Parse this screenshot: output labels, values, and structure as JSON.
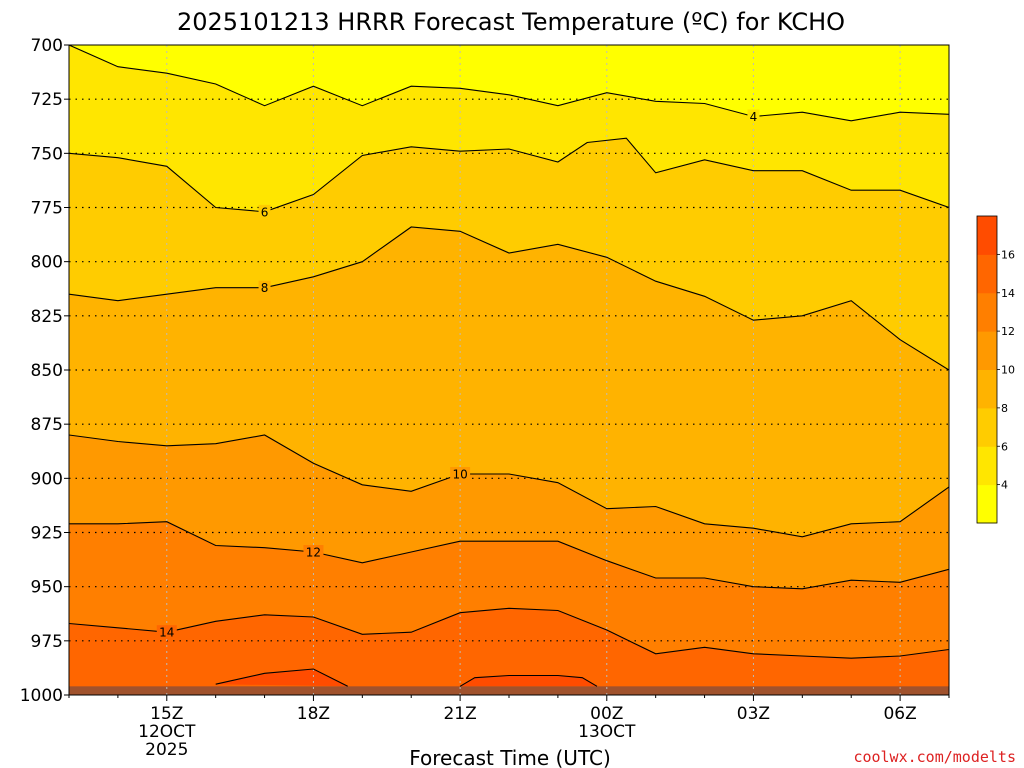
{
  "chart_data": {
    "type": "heatmap",
    "subtype": "time-pressure contour cross-section",
    "title": "2025101213 HRRR Forecast Temperature (ºC) for KCHO",
    "xlabel": "Forecast Time (UTC)",
    "ylabel": "",
    "credit": "coolwx.com/modelts",
    "x_start_hour": 13,
    "x_end_hour": 31,
    "x_ticks": [
      {
        "hour": 15,
        "lines": [
          "15Z",
          "12OCT",
          "2025"
        ]
      },
      {
        "hour": 18,
        "lines": [
          "18Z"
        ]
      },
      {
        "hour": 21,
        "lines": [
          "21Z"
        ]
      },
      {
        "hour": 24,
        "lines": [
          "00Z",
          "13OCT"
        ]
      },
      {
        "hour": 27,
        "lines": [
          "03Z"
        ]
      },
      {
        "hour": 30,
        "lines": [
          "06Z"
        ]
      }
    ],
    "y_axis": {
      "scale": "linear",
      "inverted": true,
      "range": [
        700,
        1000
      ],
      "unit": "hPa"
    },
    "y_ticks": [
      700,
      725,
      750,
      775,
      800,
      825,
      850,
      875,
      900,
      925,
      950,
      975,
      1000
    ],
    "grid": "dotted",
    "colorbar": {
      "position": "right",
      "levels": [
        2,
        4,
        6,
        8,
        10,
        12,
        14,
        16,
        18
      ],
      "labels": [
        4,
        6,
        8,
        10,
        12,
        14,
        16
      ],
      "colors": [
        "#ffff00",
        "#ffe600",
        "#ffcc00",
        "#ffb300",
        "#ff9900",
        "#ff7f00",
        "#ff6600",
        "#ff4c00"
      ]
    },
    "ground_color": "#a0522d",
    "ground_pressure": 996,
    "contours": [
      {
        "level": 4,
        "label_at": 27.0,
        "points": [
          [
            13.0,
            700
          ],
          [
            14.0,
            710
          ],
          [
            15.0,
            713
          ],
          [
            16.0,
            718
          ],
          [
            17.0,
            728
          ],
          [
            18.0,
            719
          ],
          [
            19.0,
            728
          ],
          [
            20.0,
            719
          ],
          [
            21.0,
            720
          ],
          [
            22.0,
            723
          ],
          [
            23.0,
            728
          ],
          [
            24.0,
            722
          ],
          [
            25.0,
            726
          ],
          [
            26.0,
            727
          ],
          [
            27.0,
            733
          ],
          [
            28.0,
            731
          ],
          [
            29.0,
            735
          ],
          [
            30.0,
            731
          ],
          [
            31.0,
            732
          ]
        ]
      },
      {
        "level": 6,
        "label_at": 17.0,
        "points": [
          [
            13.0,
            750
          ],
          [
            14.0,
            752
          ],
          [
            15.0,
            756
          ],
          [
            16.0,
            775
          ],
          [
            17.0,
            777
          ],
          [
            18.0,
            769
          ],
          [
            19.0,
            751
          ],
          [
            20.0,
            747
          ],
          [
            21.0,
            749
          ],
          [
            22.0,
            748
          ],
          [
            23.0,
            754
          ],
          [
            23.6,
            745
          ],
          [
            24.4,
            743
          ],
          [
            25.0,
            759
          ],
          [
            26.0,
            753
          ],
          [
            27.0,
            758
          ],
          [
            28.0,
            758
          ],
          [
            29.0,
            767
          ],
          [
            30.0,
            767
          ],
          [
            31.0,
            775
          ]
        ]
      },
      {
        "level": 8,
        "label_at": 17.0,
        "points": [
          [
            13.0,
            815
          ],
          [
            14.0,
            818
          ],
          [
            15.0,
            815
          ],
          [
            16.0,
            812
          ],
          [
            17.0,
            812
          ],
          [
            18.0,
            807
          ],
          [
            19.0,
            800
          ],
          [
            20.0,
            784
          ],
          [
            21.0,
            786
          ],
          [
            22.0,
            796
          ],
          [
            23.0,
            792
          ],
          [
            24.0,
            798
          ],
          [
            25.0,
            809
          ],
          [
            26.0,
            816
          ],
          [
            27.0,
            827
          ],
          [
            28.0,
            825
          ],
          [
            29.0,
            818
          ],
          [
            30.0,
            836
          ],
          [
            31.0,
            850
          ]
        ]
      },
      {
        "level": 10,
        "label_at": 21.0,
        "points": [
          [
            13.0,
            880
          ],
          [
            14.0,
            883
          ],
          [
            15.0,
            885
          ],
          [
            16.0,
            884
          ],
          [
            17.0,
            880
          ],
          [
            18.0,
            893
          ],
          [
            19.0,
            903
          ],
          [
            20.0,
            906
          ],
          [
            21.0,
            898
          ],
          [
            22.0,
            898
          ],
          [
            23.0,
            902
          ],
          [
            24.0,
            914
          ],
          [
            25.0,
            913
          ],
          [
            26.0,
            921
          ],
          [
            27.0,
            923
          ],
          [
            28.0,
            927
          ],
          [
            29.0,
            921
          ],
          [
            30.0,
            920
          ],
          [
            31.0,
            904
          ]
        ]
      },
      {
        "level": 12,
        "label_at": 18.0,
        "points": [
          [
            13.0,
            921
          ],
          [
            14.0,
            921
          ],
          [
            15.0,
            920
          ],
          [
            16.0,
            931
          ],
          [
            17.0,
            932
          ],
          [
            18.0,
            934
          ],
          [
            19.0,
            939
          ],
          [
            20.0,
            934
          ],
          [
            21.0,
            929
          ],
          [
            22.0,
            929
          ],
          [
            23.0,
            929
          ],
          [
            24.0,
            938
          ],
          [
            25.0,
            946
          ],
          [
            26.0,
            946
          ],
          [
            27.0,
            950
          ],
          [
            28.0,
            951
          ],
          [
            29.0,
            947
          ],
          [
            30.0,
            948
          ],
          [
            31.0,
            942
          ]
        ]
      },
      {
        "level": 14,
        "label_at": 15.0,
        "points": [
          [
            13.0,
            967
          ],
          [
            14.0,
            969
          ],
          [
            15.0,
            971
          ],
          [
            16.0,
            966
          ],
          [
            17.0,
            963
          ],
          [
            18.0,
            964
          ],
          [
            19.0,
            972
          ],
          [
            20.0,
            971
          ],
          [
            21.0,
            962
          ],
          [
            22.0,
            960
          ],
          [
            23.0,
            961
          ],
          [
            24.0,
            970
          ],
          [
            25.0,
            981
          ],
          [
            26.0,
            978
          ],
          [
            27.0,
            981
          ],
          [
            28.0,
            982
          ],
          [
            29.0,
            983
          ],
          [
            30.0,
            982
          ],
          [
            31.0,
            979
          ]
        ]
      },
      {
        "level": 16,
        "label_at": null,
        "points": [
          [
            16.0,
            995
          ],
          [
            17.0,
            990
          ],
          [
            18.0,
            988
          ],
          [
            18.7,
            996
          ]
        ]
      },
      {
        "level": 16,
        "label_at": null,
        "points": [
          [
            21.0,
            996
          ],
          [
            21.3,
            992
          ],
          [
            22.0,
            991
          ],
          [
            23.0,
            991
          ],
          [
            23.5,
            992
          ],
          [
            23.8,
            996
          ]
        ]
      }
    ]
  }
}
